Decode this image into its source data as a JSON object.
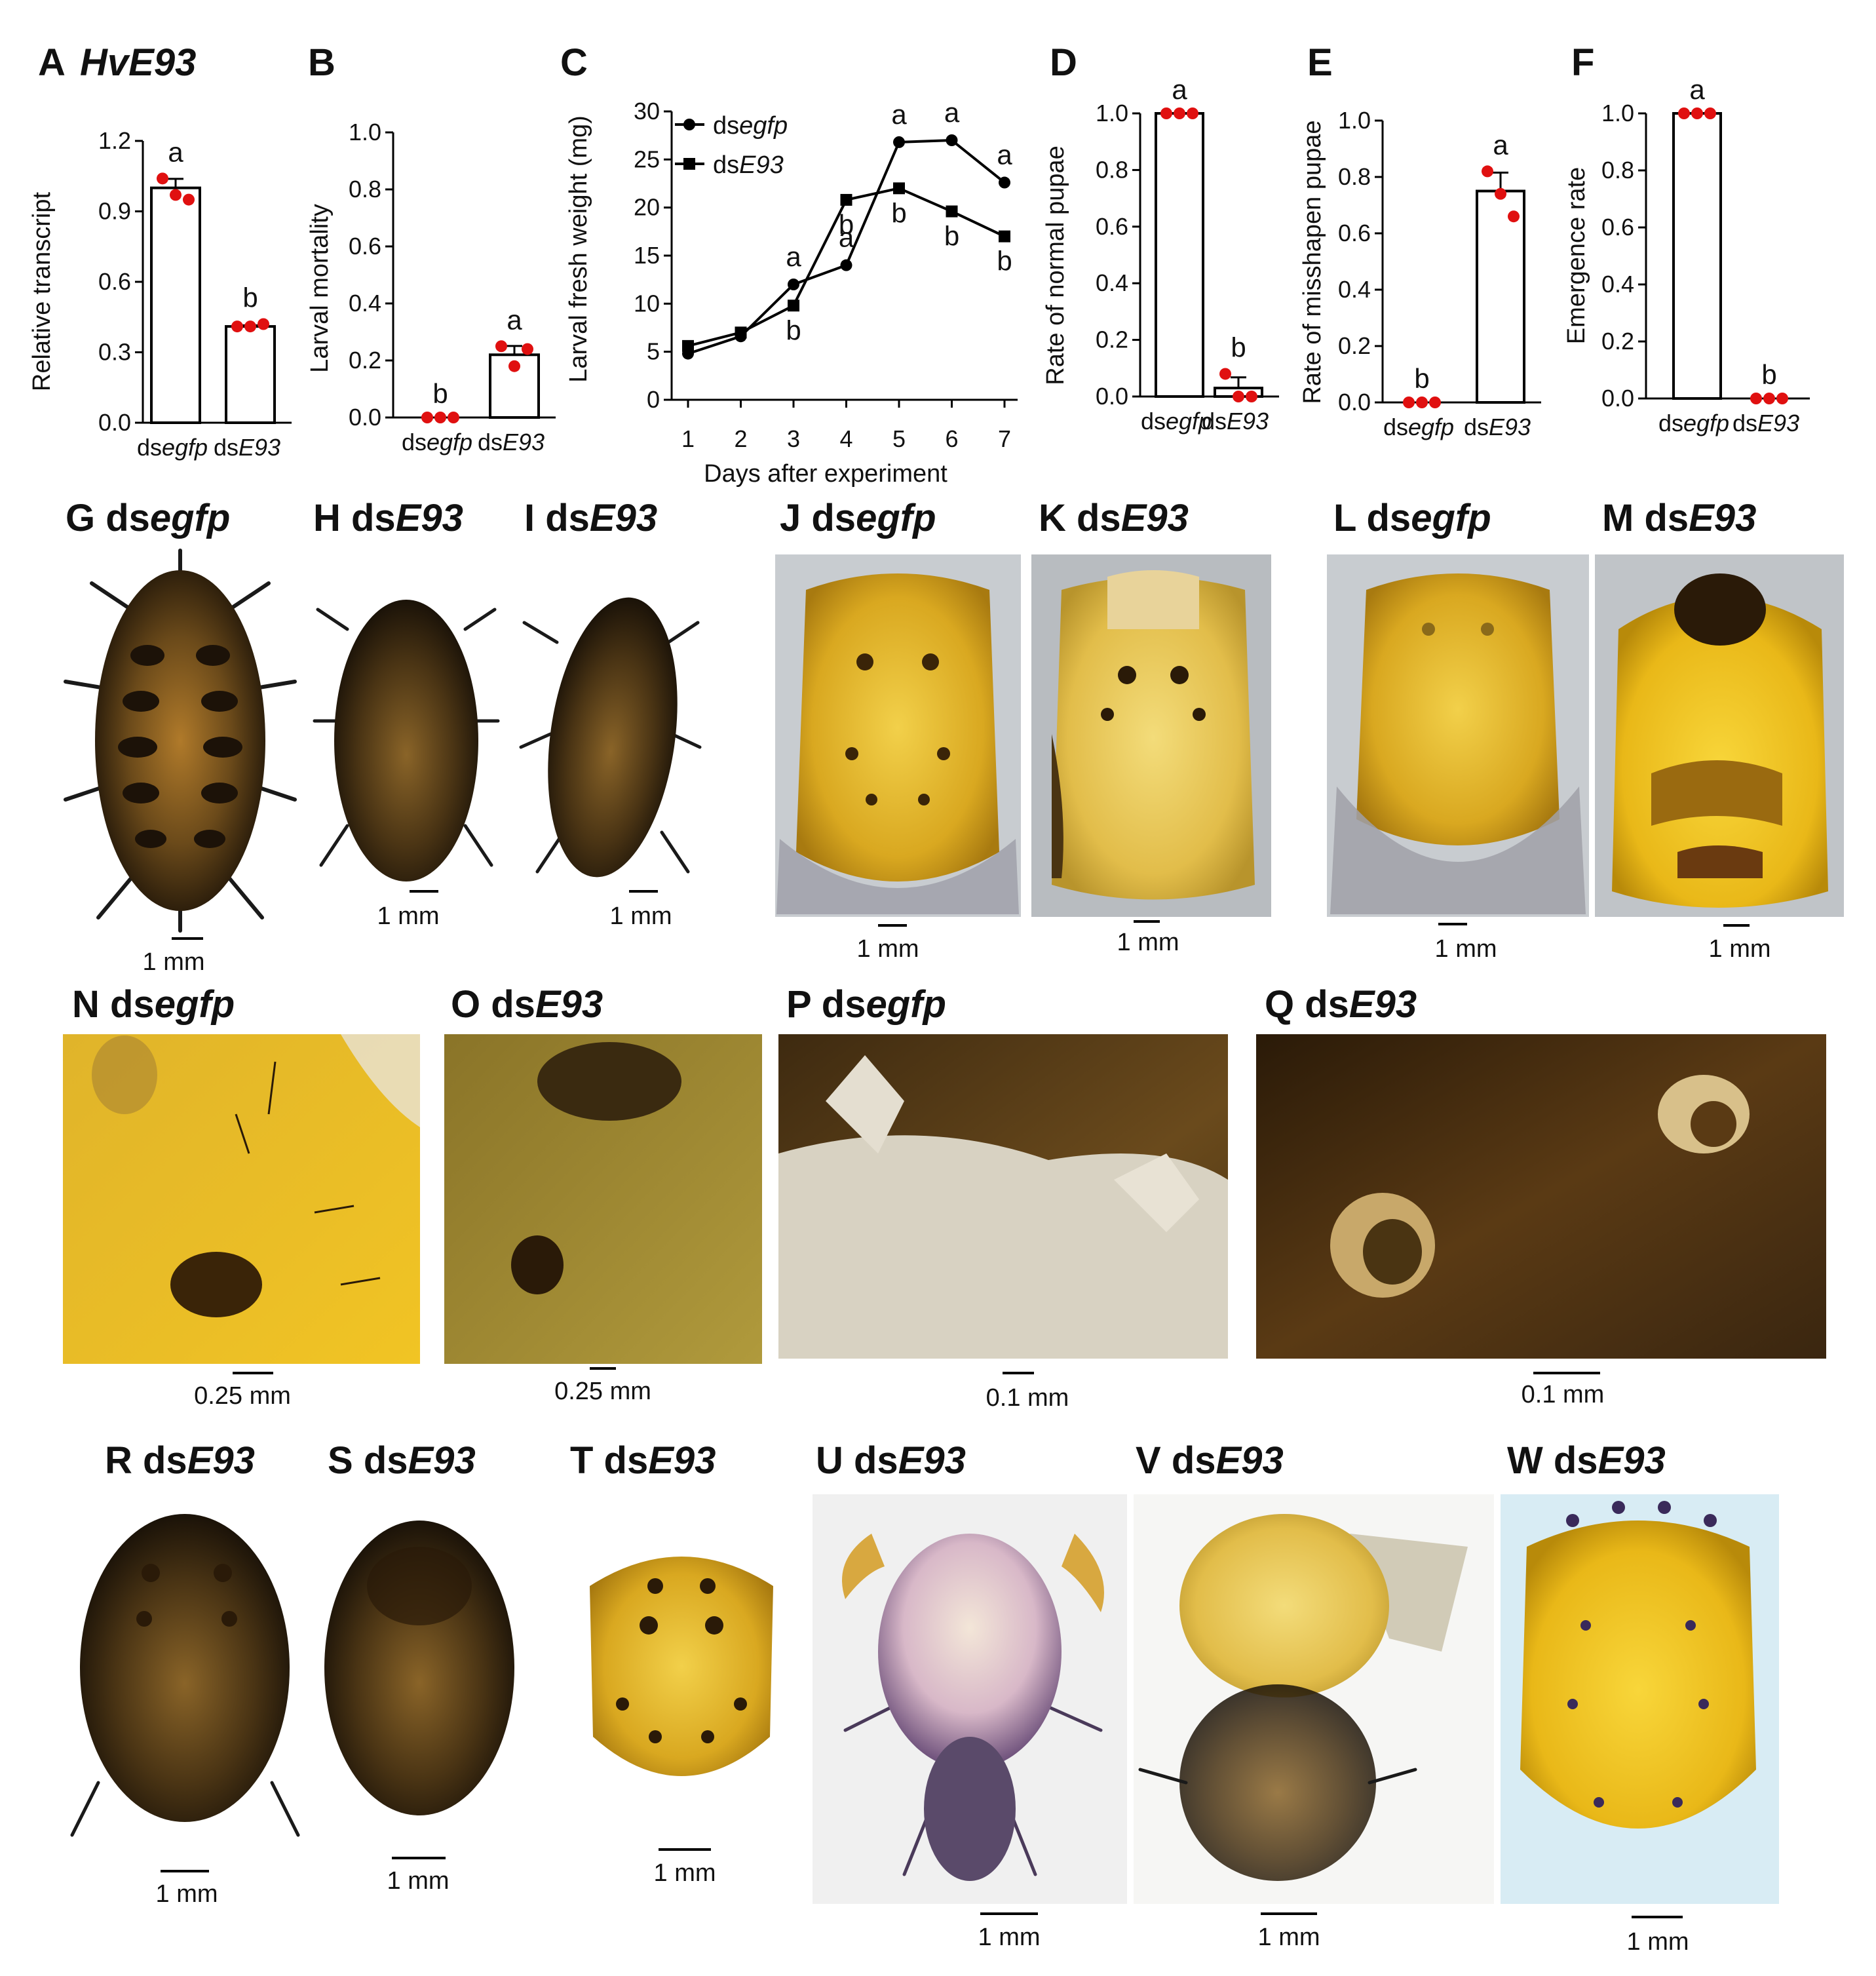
{
  "colors": {
    "bar_fill": "#ffffff",
    "bar_edge": "#000000",
    "point": "#e01010",
    "line": "#000000"
  },
  "panels_top": {
    "A": {
      "letter": "A",
      "gene": "HvE93"
    },
    "B": {
      "letter": "B"
    },
    "C": {
      "letter": "C"
    },
    "D": {
      "letter": "D"
    },
    "E": {
      "letter": "E"
    },
    "F": {
      "letter": "F"
    }
  },
  "group_labels": {
    "ds": "ds",
    "egfp": "egfp",
    "e93": "E93"
  },
  "chart_data": [
    {
      "id": "A",
      "type": "bar",
      "ylabel": "Relative  transcript",
      "ylim": [
        0,
        1.2
      ],
      "yticks": [
        "0.0",
        "0.3",
        "0.6",
        "0.9",
        "1.2"
      ],
      "categories": [
        "dsegfp",
        "dsE93"
      ],
      "values": [
        1.0,
        0.41
      ],
      "points": [
        [
          1.04,
          0.97,
          0.95
        ],
        [
          0.41,
          0.41,
          0.42
        ]
      ],
      "letters": [
        "a",
        "b"
      ]
    },
    {
      "id": "B",
      "type": "bar",
      "ylabel": "Larval  mortality",
      "ylim": [
        0,
        1.0
      ],
      "yticks": [
        "0.0",
        "0.2",
        "0.4",
        "0.6",
        "0.8",
        "1.0"
      ],
      "categories": [
        "dsegfp",
        "dsE93"
      ],
      "values": [
        0.0,
        0.22
      ],
      "points": [
        [
          0.0,
          0.0,
          0.0
        ],
        [
          0.25,
          0.18,
          0.24
        ]
      ],
      "letters": [
        "b",
        "a"
      ]
    },
    {
      "id": "C",
      "type": "line",
      "ylabel": "Larval  fresh  weight  (mg)",
      "xlabel": "Days   after experiment",
      "ylim": [
        0,
        30
      ],
      "yticks": [
        "0",
        "5",
        "10",
        "15",
        "20",
        "25",
        "30"
      ],
      "x": [
        1,
        2,
        3,
        4,
        5,
        6,
        7
      ],
      "xticks": [
        "1",
        "2",
        "3",
        "4",
        "5",
        "6",
        "7"
      ],
      "series": [
        {
          "name": "dsegfp",
          "marker": "circle",
          "values": [
            4.8,
            6.6,
            12.0,
            14.0,
            26.8,
            27.0,
            22.6
          ],
          "letters": [
            "",
            "",
            "a",
            "a",
            "a",
            "a",
            "a"
          ]
        },
        {
          "name": "dsE93",
          "marker": "square",
          "values": [
            5.6,
            7.0,
            9.8,
            20.8,
            22.0,
            19.6,
            17.0
          ],
          "letters": [
            "",
            "",
            "b",
            "b",
            "b",
            "b",
            "b"
          ]
        }
      ]
    },
    {
      "id": "D",
      "type": "bar",
      "ylabel": "Rate of normal pupae",
      "ylim": [
        0,
        1.0
      ],
      "yticks": [
        "0.0",
        "0.2",
        "0.4",
        "0.6",
        "0.8",
        "1.0"
      ],
      "categories": [
        "dsegfp",
        "dsE93"
      ],
      "values": [
        1.0,
        0.03
      ],
      "points": [
        [
          1.0,
          1.0,
          1.0
        ],
        [
          0.08,
          0.0,
          0.0
        ]
      ],
      "letters": [
        "a",
        "b"
      ]
    },
    {
      "id": "E",
      "type": "bar",
      "ylabel": "Rate of misshapen pupae",
      "ylim": [
        0,
        1.0
      ],
      "yticks": [
        "0.0",
        "0.2",
        "0.4",
        "0.6",
        "0.8",
        "1.0"
      ],
      "categories": [
        "dsegfp",
        "dsE93"
      ],
      "values": [
        0.0,
        0.75
      ],
      "points": [
        [
          0.0,
          0.0,
          0.0
        ],
        [
          0.82,
          0.74,
          0.66
        ]
      ],
      "letters": [
        "b",
        "a"
      ]
    },
    {
      "id": "F",
      "type": "bar",
      "ylabel": "Emergence  rate",
      "ylim": [
        0,
        1.0
      ],
      "yticks": [
        "0.0",
        "0.2",
        "0.4",
        "0.6",
        "0.8",
        "1.0"
      ],
      "categories": [
        "dsegfp",
        "dsE93"
      ],
      "values": [
        1.0,
        0.0
      ],
      "points": [
        [
          1.0,
          1.0,
          1.0
        ],
        [
          0.0,
          0.0,
          0.0
        ]
      ],
      "letters": [
        "a",
        "b"
      ]
    }
  ],
  "photo_panels": [
    {
      "letter": "G",
      "treatment": "dsegfp",
      "scale": "1 mm"
    },
    {
      "letter": "H",
      "treatment": "dsE93",
      "scale": "1  mm"
    },
    {
      "letter": "I",
      "treatment": "dsE93",
      "scale": "1  mm"
    },
    {
      "letter": "J",
      "treatment": "dsegfp",
      "scale": "1  mm"
    },
    {
      "letter": "K",
      "treatment": "dsE93",
      "scale": "1  mm"
    },
    {
      "letter": "L",
      "treatment": "dsegfp",
      "scale": "1  mm"
    },
    {
      "letter": "M",
      "treatment": "dsE93",
      "scale": "1  mm"
    },
    {
      "letter": "N",
      "treatment": "dsegfp",
      "scale": "0.25  mm"
    },
    {
      "letter": "O",
      "treatment": "dsE93",
      "scale": "0.25  mm"
    },
    {
      "letter": "P",
      "treatment": "dsegfp",
      "scale": "0.1  mm"
    },
    {
      "letter": "Q",
      "treatment": "dsE93",
      "scale": "0.1  mm"
    },
    {
      "letter": "R",
      "treatment": "dsE93",
      "scale": "1  mm"
    },
    {
      "letter": "S",
      "treatment": "dsE93",
      "scale": "1  mm"
    },
    {
      "letter": "T",
      "treatment": "dsE93",
      "scale": "1  mm"
    },
    {
      "letter": "U",
      "treatment": "dsE93",
      "scale": "1  mm"
    },
    {
      "letter": "V",
      "treatment": "dsE93",
      "scale": "1  mm"
    },
    {
      "letter": "W",
      "treatment": "dsE93",
      "scale": "1  mm"
    }
  ]
}
